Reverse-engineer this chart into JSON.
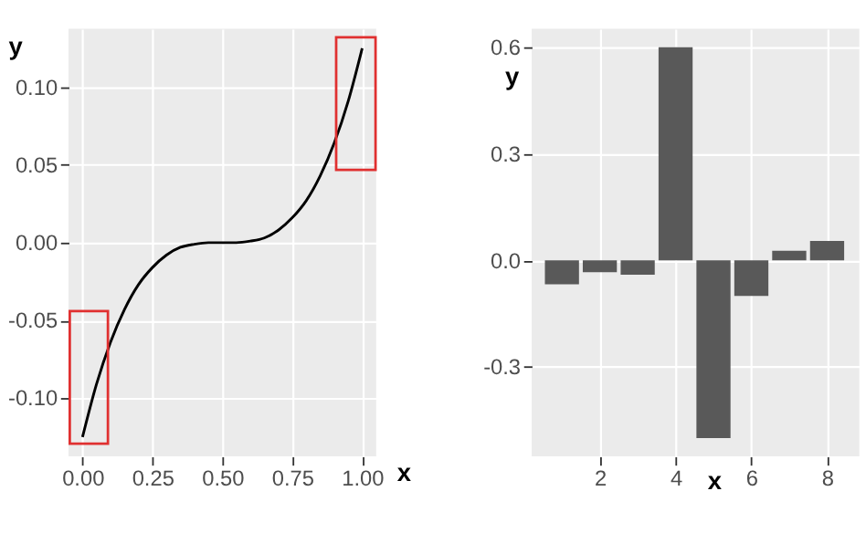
{
  "chart_data": [
    {
      "type": "line",
      "xlabel": "x",
      "ylabel": "y",
      "grid": true,
      "marker": "none",
      "line_style": "solid",
      "x": [
        0,
        0.05,
        0.1,
        0.15,
        0.2,
        0.25,
        0.3,
        0.35,
        0.4,
        0.45,
        0.5,
        0.55,
        0.6,
        0.65,
        0.7,
        0.75,
        0.8,
        0.85,
        0.9,
        0.95,
        1
      ],
      "series": [
        {
          "color": "#000000",
          "values": [
            -0.125,
            -0.091,
            -0.064,
            -0.043,
            -0.027,
            -0.016,
            -0.008,
            -0.003,
            -0.001,
            0,
            0,
            0,
            0.001,
            0.003,
            0.008,
            0.016,
            0.027,
            0.043,
            0.064,
            0.091,
            0.125
          ]
        }
      ],
      "xlim": [
        -0.05,
        1.05
      ],
      "ylim": [
        -0.1375,
        0.1375
      ],
      "xticks": [
        {
          "value": 0,
          "label": "0.00"
        },
        {
          "value": 0.25,
          "label": "0.25"
        },
        {
          "value": 0.5,
          "label": "0.50"
        },
        {
          "value": 0.75,
          "label": "0.75"
        },
        {
          "value": 1,
          "label": "1.00"
        }
      ],
      "yticks": [
        {
          "value": -0.1,
          "label": "-0.10"
        },
        {
          "value": -0.05,
          "label": "-0.05"
        },
        {
          "value": 0,
          "label": "0.00"
        },
        {
          "value": 0.05,
          "label": "0.05"
        },
        {
          "value": 0.1,
          "label": "0.10"
        }
      ]
    },
    {
      "type": "bar",
      "xlabel": "x",
      "ylabel": "y",
      "grid": true,
      "x": [
        1,
        2,
        3,
        4,
        5,
        6,
        7,
        8
      ],
      "series": [
        {
          "color": "#595959",
          "values": [
            -0.067,
            -0.033,
            -0.04,
            0.6,
            -0.5,
            -0.1,
            0.027,
            0.055
          ]
        }
      ],
      "xlim": [
        0.2,
        8.85
      ],
      "ylim": [
        -0.552,
        0.652
      ],
      "xticks": [
        2,
        4,
        6,
        8
      ],
      "yticks": [
        {
          "value": -0.3,
          "label": "-0.3"
        },
        {
          "value": 0,
          "label": "0.0"
        },
        {
          "value": 0.3,
          "label": "0.3"
        },
        {
          "value": 0.6,
          "label": "0.6"
        }
      ]
    }
  ]
}
